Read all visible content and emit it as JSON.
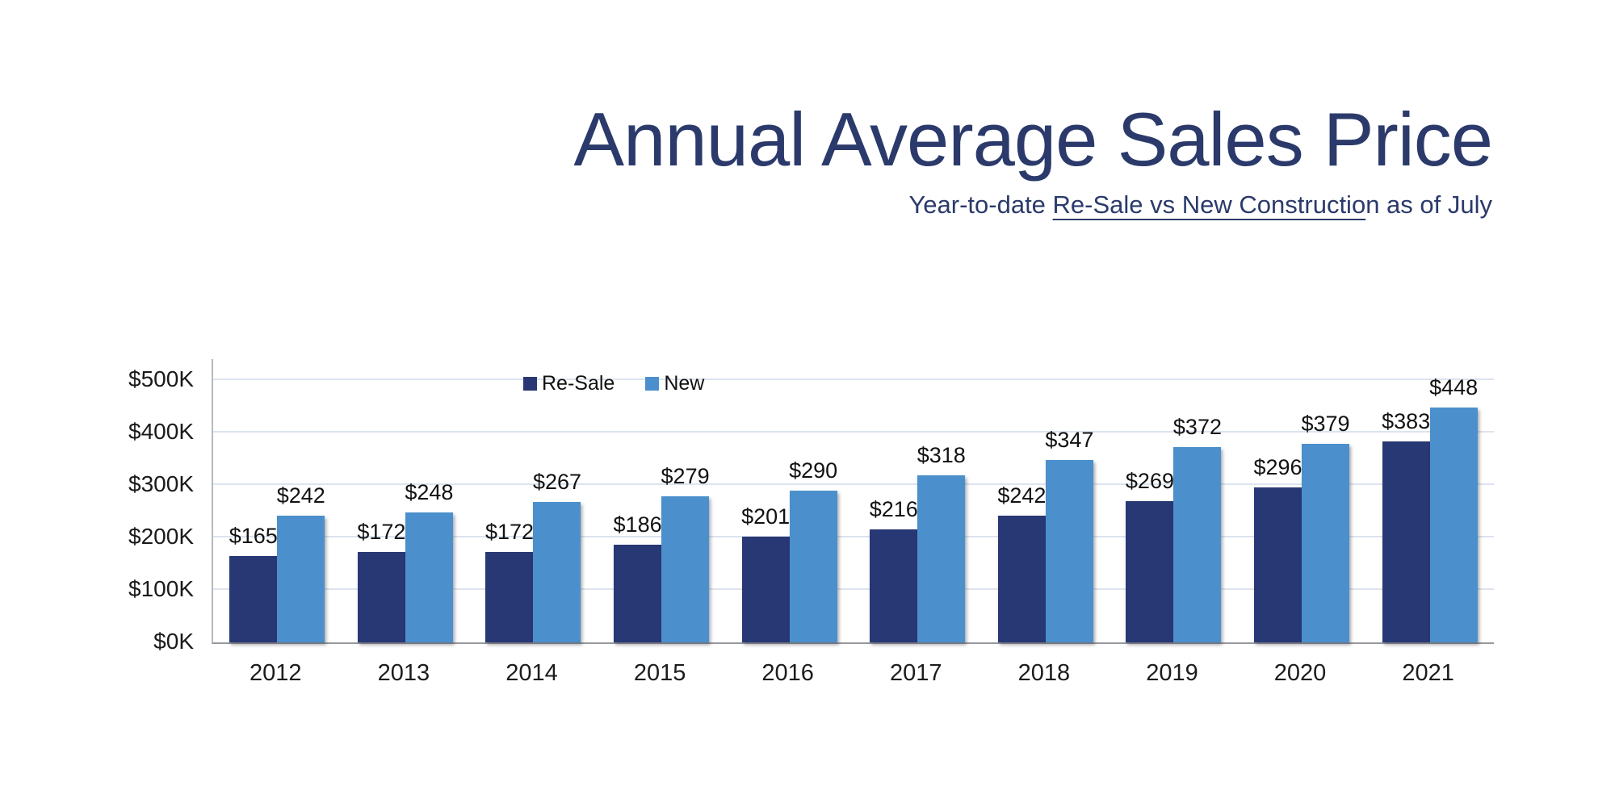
{
  "slide": {
    "title": "Annual Average Sales Price",
    "subtitle_prefix": "Year-to-date ",
    "subtitle_underlined": "Re-Sale vs New Constructio",
    "subtitle_suffix": "n as of July"
  },
  "colors": {
    "navy_text": "#2b3a6b",
    "resale_bar": "#283874",
    "new_bar": "#4b90cc",
    "gridline": "#dde3ef",
    "axis_line": "#97999d",
    "label_text": "#121212"
  },
  "legend": {
    "items": [
      {
        "label": "Re-Sale",
        "color": "#283874"
      },
      {
        "label": "New",
        "color": "#4b90cc"
      }
    ]
  },
  "chart_data": {
    "type": "bar",
    "title": "Annual Average Sales Price",
    "subtitle": "Year-to-date Re-Sale vs New Construction as of July",
    "categories": [
      "2012",
      "2013",
      "2014",
      "2015",
      "2016",
      "2017",
      "2018",
      "2019",
      "2020",
      "2021"
    ],
    "series": [
      {
        "name": "Re-Sale",
        "color": "#283874",
        "values": [
          165,
          172,
          172,
          186,
          201,
          216,
          242,
          269,
          296,
          383
        ]
      },
      {
        "name": "New",
        "color": "#4b90cc",
        "values": [
          242,
          248,
          267,
          279,
          290,
          318,
          347,
          372,
          379,
          448
        ]
      }
    ],
    "value_label_prefix": "$",
    "value_labels": {
      "Re-Sale": [
        "$165",
        "$172",
        "$172",
        "$186",
        "$201",
        "$216",
        "$242",
        "$269",
        "$296",
        "$383"
      ],
      "New": [
        "$242",
        "$248",
        "$267",
        "$279",
        "$290",
        "$318",
        "$347",
        "$372",
        "$379",
        "$448"
      ]
    },
    "y_axis": {
      "ticks": [
        "$0K",
        "$100K",
        "$200K",
        "$300K",
        "$400K",
        "$500K"
      ],
      "min": 0,
      "max": 500,
      "step": 100,
      "units": "thousands USD"
    },
    "xlabel": "",
    "ylabel": "",
    "ylim": [
      0,
      500
    ],
    "grid": true,
    "legend_position": "inside-top-left"
  }
}
